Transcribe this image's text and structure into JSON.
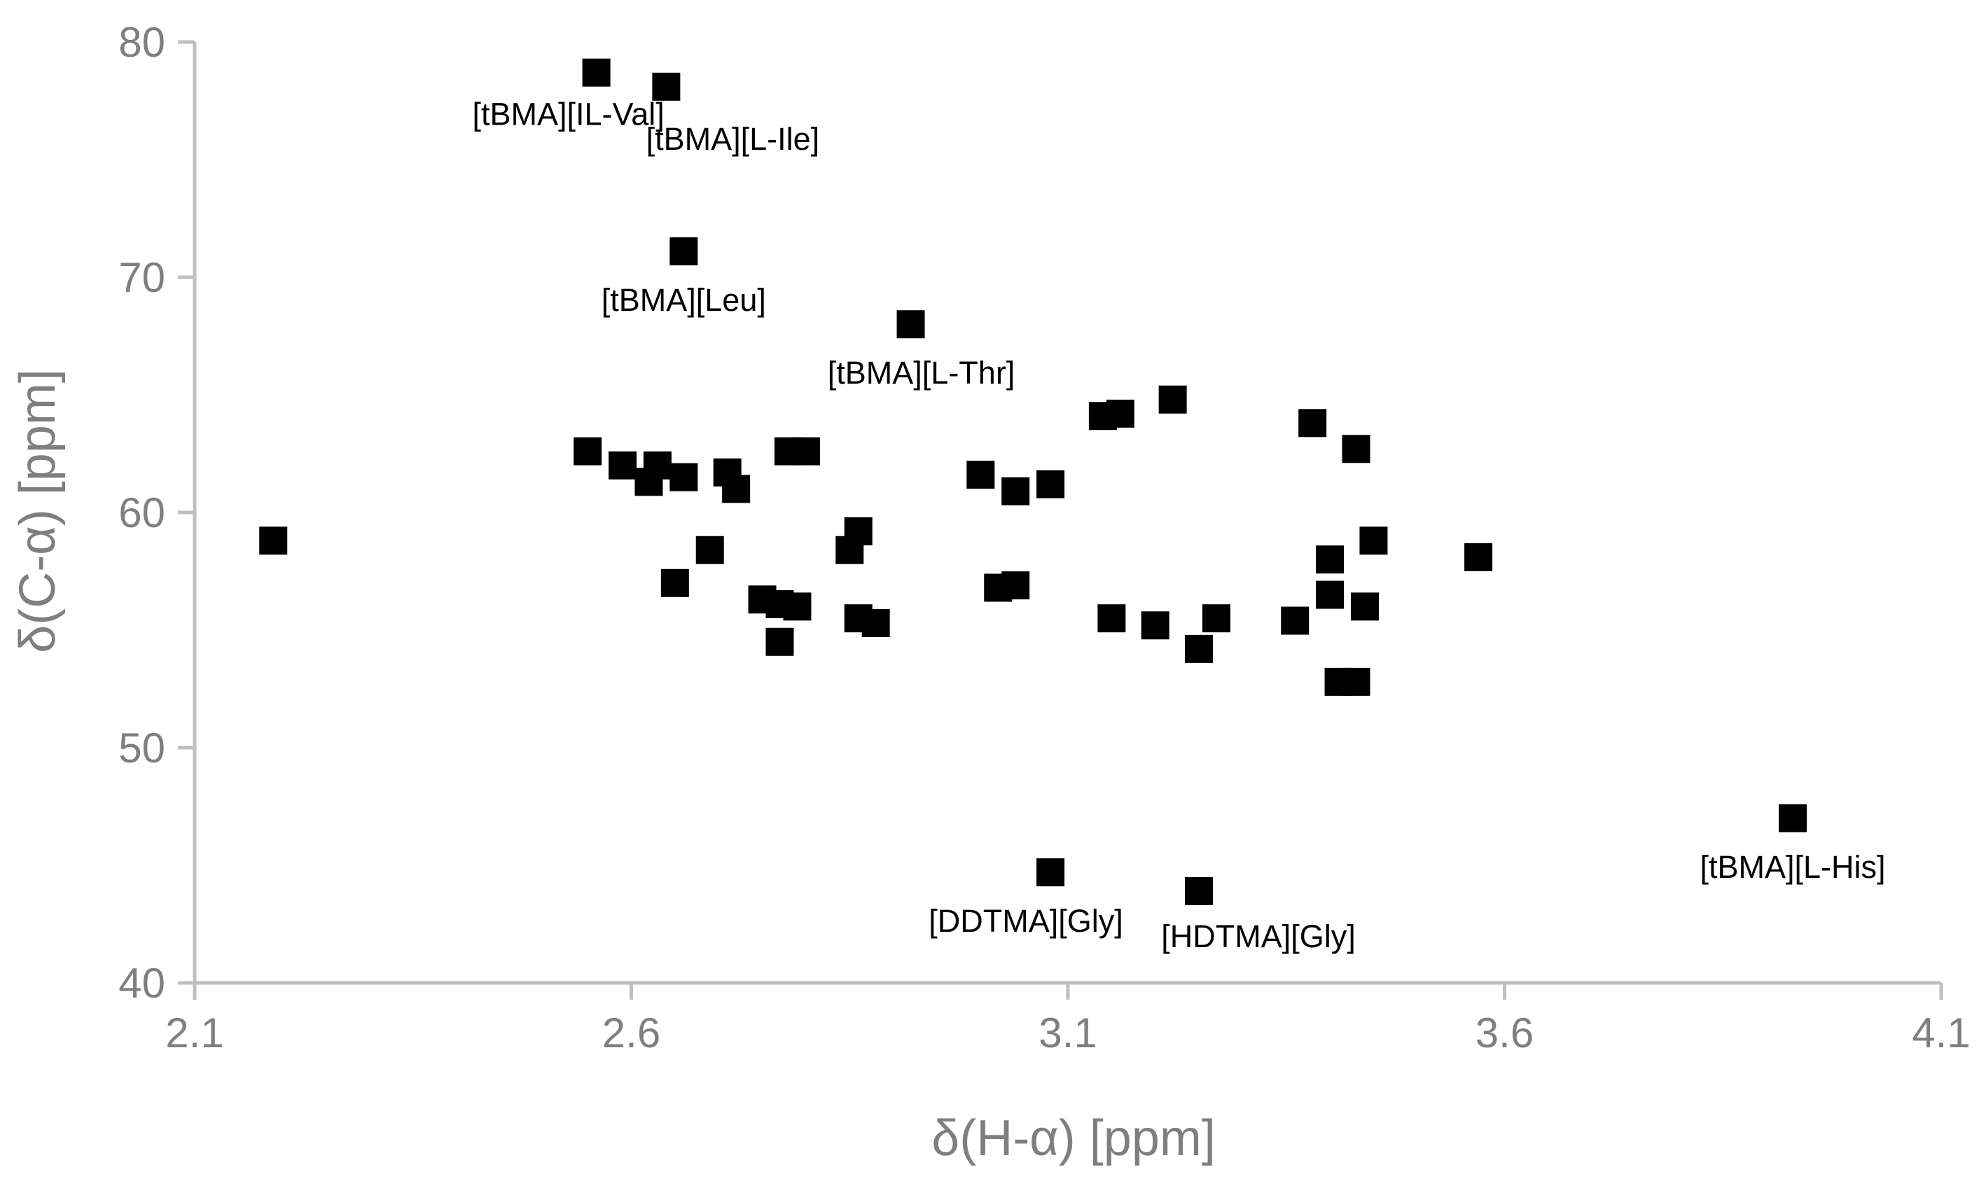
{
  "chart_data": {
    "type": "scatter",
    "title": "",
    "xlabel": "δ(H-α) [ppm]",
    "ylabel": "δ(C-α) [ppm]",
    "xlim": [
      2.1,
      4.1
    ],
    "ylim": [
      40,
      80
    ],
    "x_ticks": [
      "2.1",
      "2.6",
      "3.1",
      "3.6",
      "4.1"
    ],
    "y_ticks": [
      "40",
      "50",
      "60",
      "70",
      "80"
    ],
    "grid": false,
    "legend": "none",
    "marker": "square",
    "marker_color": "#000000",
    "axis_color": "#bfbfbf",
    "text_color": "#7f7f7f",
    "points": [
      {
        "x": 2.19,
        "y": 58.8
      },
      {
        "x": 2.55,
        "y": 62.6
      },
      {
        "x": 2.56,
        "y": 78.7,
        "label": "[tBMA][IL-Val]"
      },
      {
        "x": 2.59,
        "y": 62.0
      },
      {
        "x": 2.62,
        "y": 61.3
      },
      {
        "x": 2.63,
        "y": 62.0
      },
      {
        "x": 2.64,
        "y": 78.1,
        "label": "[tBMA][L-Ile]"
      },
      {
        "x": 2.65,
        "y": 57.0
      },
      {
        "x": 2.66,
        "y": 61.5
      },
      {
        "x": 2.66,
        "y": 71.1,
        "label": "[tBMA][Leu]"
      },
      {
        "x": 2.69,
        "y": 58.4
      },
      {
        "x": 2.71,
        "y": 61.7
      },
      {
        "x": 2.72,
        "y": 61.0
      },
      {
        "x": 2.75,
        "y": 56.3
      },
      {
        "x": 2.77,
        "y": 56.1
      },
      {
        "x": 2.77,
        "y": 54.5
      },
      {
        "x": 2.78,
        "y": 62.6
      },
      {
        "x": 2.79,
        "y": 56.0
      },
      {
        "x": 2.8,
        "y": 62.6
      },
      {
        "x": 2.85,
        "y": 58.4
      },
      {
        "x": 2.86,
        "y": 59.2
      },
      {
        "x": 2.86,
        "y": 55.5
      },
      {
        "x": 2.88,
        "y": 55.3
      },
      {
        "x": 2.92,
        "y": 68.0,
        "label": "[tBMA][L-Thr]"
      },
      {
        "x": 3.0,
        "y": 61.6
      },
      {
        "x": 3.02,
        "y": 56.8
      },
      {
        "x": 3.04,
        "y": 56.9
      },
      {
        "x": 3.04,
        "y": 60.9
      },
      {
        "x": 3.08,
        "y": 61.2
      },
      {
        "x": 3.08,
        "y": 44.7,
        "label": "[DDTMA][Gly]"
      },
      {
        "x": 3.14,
        "y": 64.1
      },
      {
        "x": 3.15,
        "y": 55.5
      },
      {
        "x": 3.16,
        "y": 64.2
      },
      {
        "x": 3.2,
        "y": 55.2
      },
      {
        "x": 3.22,
        "y": 64.8
      },
      {
        "x": 3.25,
        "y": 54.2
      },
      {
        "x": 3.25,
        "y": 43.9,
        "label": "[HDTMA][Gly]"
      },
      {
        "x": 3.27,
        "y": 55.5
      },
      {
        "x": 3.36,
        "y": 55.4
      },
      {
        "x": 3.38,
        "y": 63.8
      },
      {
        "x": 3.4,
        "y": 58.0
      },
      {
        "x": 3.4,
        "y": 56.5
      },
      {
        "x": 3.41,
        "y": 52.8
      },
      {
        "x": 3.43,
        "y": 52.8
      },
      {
        "x": 3.43,
        "y": 62.7
      },
      {
        "x": 3.44,
        "y": 56.0
      },
      {
        "x": 3.45,
        "y": 58.8
      },
      {
        "x": 3.57,
        "y": 58.1
      },
      {
        "x": 3.93,
        "y": 47.0,
        "label": "[tBMA][L-His]"
      }
    ]
  }
}
